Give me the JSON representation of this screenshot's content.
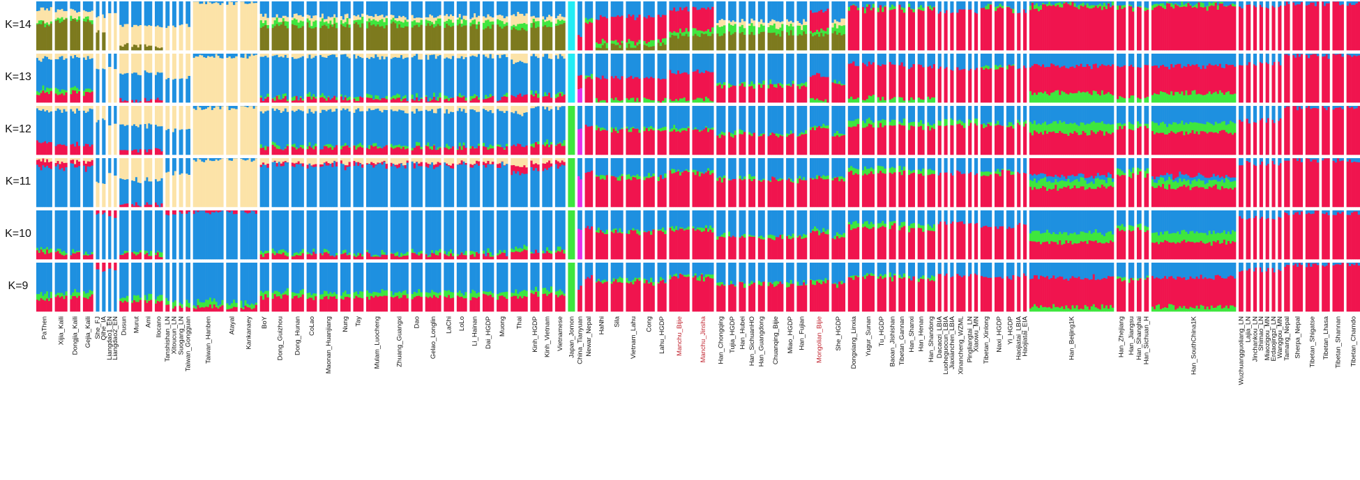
{
  "chart_data": {
    "type": "admixture_barplot",
    "title": "",
    "xlabel": "",
    "ylabel": "",
    "k_labels": [
      "K=14",
      "K=13",
      "K=12",
      "K=11",
      "K=10",
      "K=9"
    ],
    "component_colors": {
      "blue": "#1e90e0",
      "red": "#f0144e",
      "green": "#3ee63e",
      "beige": "#fce3a8",
      "olive": "#7d7a1e",
      "yellow": "#f5f044",
      "cyan": "#22ecf4",
      "magenta": "#e52fe8",
      "purple": "#5b2a8c"
    },
    "highlight_color": "#c0232e",
    "populations": [
      {
        "name": "PaThen",
        "w": 28,
        "g": "southA"
      },
      {
        "name": "Xijia_Kaili",
        "w": 22,
        "g": "hmA"
      },
      {
        "name": "Dongjia_Kaili",
        "w": 18,
        "g": "hmA"
      },
      {
        "name": "Gejia_Kaili",
        "w": 18,
        "g": "hmA"
      },
      {
        "name": "She_FJ",
        "w": 6,
        "g": "hmB"
      },
      {
        "name": "Qihe_IA",
        "w": 6,
        "g": "hmB"
      },
      {
        "name": "Liangdao1_EN",
        "w": 5,
        "g": "ausA"
      },
      {
        "name": "Liangdao2_EN",
        "w": 5,
        "g": "ausA"
      },
      {
        "name": "Dusun",
        "w": 16,
        "g": "ausB"
      },
      {
        "name": "Murut",
        "w": 18,
        "g": "ausB"
      },
      {
        "name": "Ami",
        "w": 14,
        "g": "ausB"
      },
      {
        "name": "Ilocano",
        "w": 14,
        "g": "ausB"
      },
      {
        "name": "Tanshishan_LN",
        "w": 7,
        "g": "ausC"
      },
      {
        "name": "Xitoucun_LN",
        "w": 7,
        "g": "ausC"
      },
      {
        "name": "Suogang_LN",
        "w": 7,
        "g": "ausC"
      },
      {
        "name": "Taiwan_Gongguan",
        "w": 8,
        "g": "ausC"
      },
      {
        "name": "Taiwan_Hanben",
        "w": 54,
        "g": "taiwan"
      },
      {
        "name": "Atayal",
        "w": 20,
        "g": "taiwan"
      },
      {
        "name": "Kankanaey",
        "w": 30,
        "g": "taiwan"
      },
      {
        "name": "BoY",
        "w": 16,
        "g": "daic"
      },
      {
        "name": "Dong_Guizhou",
        "w": 30,
        "g": "daic"
      },
      {
        "name": "Dong_Hunan",
        "w": 22,
        "g": "daic"
      },
      {
        "name": "CoLao",
        "w": 18,
        "g": "daic"
      },
      {
        "name": "Maonan_Huanjiang",
        "w": 32,
        "g": "daic"
      },
      {
        "name": "Nung",
        "w": 18,
        "g": "daic"
      },
      {
        "name": "Tay",
        "w": 18,
        "g": "daic"
      },
      {
        "name": "Mulam_Luocheng",
        "w": 38,
        "g": "daic"
      },
      {
        "name": "Zhuang_Guangxi",
        "w": 32,
        "g": "daic"
      },
      {
        "name": "Dao",
        "w": 20,
        "g": "daic"
      },
      {
        "name": "Gelao_Longlin",
        "w": 28,
        "g": "daic"
      },
      {
        "name": "LaChi",
        "w": 18,
        "g": "daic"
      },
      {
        "name": "LoLo",
        "w": 18,
        "g": "daic"
      },
      {
        "name": "Li_Hainan",
        "w": 18,
        "g": "daic"
      },
      {
        "name": "Dai_HGDP",
        "w": 20,
        "g": "daic"
      },
      {
        "name": "Muong",
        "w": 20,
        "g": "daic"
      },
      {
        "name": "Thai",
        "w": 30,
        "g": "thai"
      },
      {
        "name": "Kinh_HGDP",
        "w": 16,
        "g": "kinh"
      },
      {
        "name": "Kinh_Vietnam",
        "w": 18,
        "g": "kinh"
      },
      {
        "name": "Vietnamese",
        "w": 18,
        "g": "kinh"
      },
      {
        "name": "Japan_Jomon",
        "w": 12,
        "g": "jomon"
      },
      {
        "name": "China_Tianyuan",
        "w": 8,
        "g": "tianyuan"
      },
      {
        "name": "Newar_Nepal",
        "w": 14,
        "g": "newar"
      },
      {
        "name": "HaNhi",
        "w": 22,
        "g": "tb"
      },
      {
        "name": "Sila",
        "w": 22,
        "g": "tb"
      },
      {
        "name": "Vietnam_Lahu",
        "w": 26,
        "g": "tb"
      },
      {
        "name": "Cong",
        "w": 20,
        "g": "tb"
      },
      {
        "name": "Lahu_HGDP",
        "w": 16,
        "g": "tb"
      },
      {
        "name": "Manchu_Bijie",
        "w": 36,
        "g": "manchu",
        "red": true
      },
      {
        "name": "Manchu_Jinsha",
        "w": 38,
        "g": "manchu",
        "red": true
      },
      {
        "name": "Han_Chongqing",
        "w": 16,
        "g": "hanSW"
      },
      {
        "name": "Tujia_HGDP",
        "w": 14,
        "g": "hanSW"
      },
      {
        "name": "Han_Hubei",
        "w": 12,
        "g": "hanSW"
      },
      {
        "name": "Han_SichuanHO",
        "w": 12,
        "g": "hanSW"
      },
      {
        "name": "Han_Guangdong",
        "w": 12,
        "g": "hanSW"
      },
      {
        "name": "Chuanqing_Bijie",
        "w": 28,
        "g": "hanSW"
      },
      {
        "name": "Miao_HGDP",
        "w": 14,
        "g": "hanSW"
      },
      {
        "name": "Han_Fujian",
        "w": 18,
        "g": "hanSW"
      },
      {
        "name": "Mongolian_Bijie",
        "w": 34,
        "g": "mongol",
        "red": true
      },
      {
        "name": "She_HGDP",
        "w": 24,
        "g": "hanSW"
      },
      {
        "name": "Dongxiang_Linxia",
        "w": 20,
        "g": "nw"
      },
      {
        "name": "Yugur_Sunan",
        "w": 22,
        "g": "nw"
      },
      {
        "name": "Tu_HGDP",
        "w": 16,
        "g": "nw"
      },
      {
        "name": "Baoan_Jishishan",
        "w": 12,
        "g": "nw"
      },
      {
        "name": "Tibetan_Gannan",
        "w": 12,
        "g": "nw"
      },
      {
        "name": "Han_Shanxi",
        "w": 12,
        "g": "hanN"
      },
      {
        "name": "Han_Henan",
        "w": 12,
        "g": "hanN"
      },
      {
        "name": "Han_Shandong",
        "w": 14,
        "g": "hanN"
      },
      {
        "name": "Dacaozi_LBIA",
        "w": 6,
        "g": "anc"
      },
      {
        "name": "Luoheguocun_LBIA",
        "w": 6,
        "g": "anc"
      },
      {
        "name": "Jiaxianchen_LBIA",
        "w": 6,
        "g": "anc"
      },
      {
        "name": "Xinancheng_WZML",
        "w": 16,
        "g": "anc"
      },
      {
        "name": "Pingliangtai_LN",
        "w": 6,
        "g": "anc"
      },
      {
        "name": "Xiaowu_MN",
        "w": 6,
        "g": "anc"
      },
      {
        "name": "Tibetan_Xinlong",
        "w": 20,
        "g": "tibE"
      },
      {
        "name": "Naxi_HGDP",
        "w": 16,
        "g": "tibE"
      },
      {
        "name": "Yi_HGDP",
        "w": 14,
        "g": "tibE"
      },
      {
        "name": "Haojiatai_LBIA",
        "w": 6,
        "g": "anc"
      },
      {
        "name": "Haojiatai_EIA",
        "w": 6,
        "g": "anc"
      },
      {
        "name": "Han_Beijing1K",
        "w": 150,
        "g": "hanBig"
      },
      {
        "name": "Han_Zhejiang",
        "w": 16,
        "g": "hanN"
      },
      {
        "name": "Han_Jiangsu",
        "w": 10,
        "g": "hanN"
      },
      {
        "name": "Han_Shanghai",
        "w": 8,
        "g": "hanN"
      },
      {
        "name": "Han_Sichuan_H",
        "w": 8,
        "g": "hanN"
      },
      {
        "name": "Han_SouthChina1K",
        "w": 150,
        "g": "hanBig"
      },
      {
        "name": "Wuzhuangguoliang_LN",
        "w": 8,
        "g": "tibA"
      },
      {
        "name": "Lajia_LN",
        "w": 8,
        "g": "tibA"
      },
      {
        "name": "Jinchankou_LN",
        "w": 6,
        "g": "tibA"
      },
      {
        "name": "Shimao_LN",
        "w": 6,
        "g": "tibA"
      },
      {
        "name": "Miaozigou_MN",
        "w": 6,
        "g": "tibA"
      },
      {
        "name": "Erdaojingzi_LN",
        "w": 6,
        "g": "tibA"
      },
      {
        "name": "Wanggou_MN",
        "w": 6,
        "g": "tibA"
      },
      {
        "name": "Tamang_Nepal",
        "w": 10,
        "g": "tibB"
      },
      {
        "name": "Sherpa_Nepal",
        "w": 18,
        "g": "tibB"
      },
      {
        "name": "Tibetan_Shigatse",
        "w": 24,
        "g": "tibB"
      },
      {
        "name": "Tibetan_Lhasa",
        "w": 14,
        "g": "tibB"
      },
      {
        "name": "Tibetan_Shannan",
        "w": 20,
        "g": "tibB"
      },
      {
        "name": "Tibetan_Chamdo",
        "w": 24,
        "g": "tibB"
      }
    ]
  }
}
